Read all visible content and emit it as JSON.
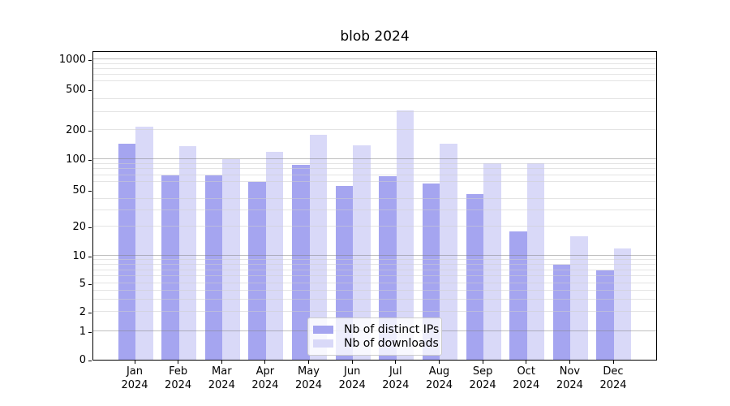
{
  "chart_data": {
    "type": "bar",
    "title": "blob 2024",
    "categories": [
      "Jan",
      "Feb",
      "Mar",
      "Apr",
      "May",
      "Jun",
      "Jul",
      "Aug",
      "Sep",
      "Oct",
      "Nov",
      "Dec"
    ],
    "category_year_line": "2024",
    "series": [
      {
        "name": "Nb of distinct IPs",
        "color": "#a5a5f0",
        "values": [
          145,
          70,
          70,
          60,
          88,
          55,
          68,
          58,
          45,
          18,
          8,
          7
        ]
      },
      {
        "name": "Nb of downloads",
        "color": "#d9d9f8",
        "values": [
          215,
          135,
          100,
          120,
          180,
          140,
          310,
          145,
          92,
          92,
          16,
          12
        ]
      }
    ],
    "xlabel": "",
    "ylabel": "",
    "y_axis": {
      "scale": "log-like with zero baseline",
      "ticks": [
        0,
        1,
        2,
        5,
        10,
        20,
        50,
        100,
        200,
        500,
        1000
      ],
      "major_gridlines": [
        1,
        10,
        100,
        1000
      ],
      "minor_gridlines": [
        2,
        3,
        4,
        5,
        6,
        7,
        8,
        9,
        20,
        30,
        40,
        60,
        70,
        80,
        90,
        200,
        300,
        400,
        600,
        700,
        800,
        900
      ],
      "ylim": [
        0,
        1230
      ]
    },
    "grid": true,
    "legend_position": "lower center"
  },
  "colors": {
    "bar_ips": "#a5a5f0",
    "bar_downloads": "#d9d9f8",
    "axis": "#000000",
    "major_grid": "rgba(128,128,128,0.5)",
    "minor_grid": "rgba(205,205,205,0.55)",
    "text": "#000000",
    "legend_border": "#cccccc"
  }
}
